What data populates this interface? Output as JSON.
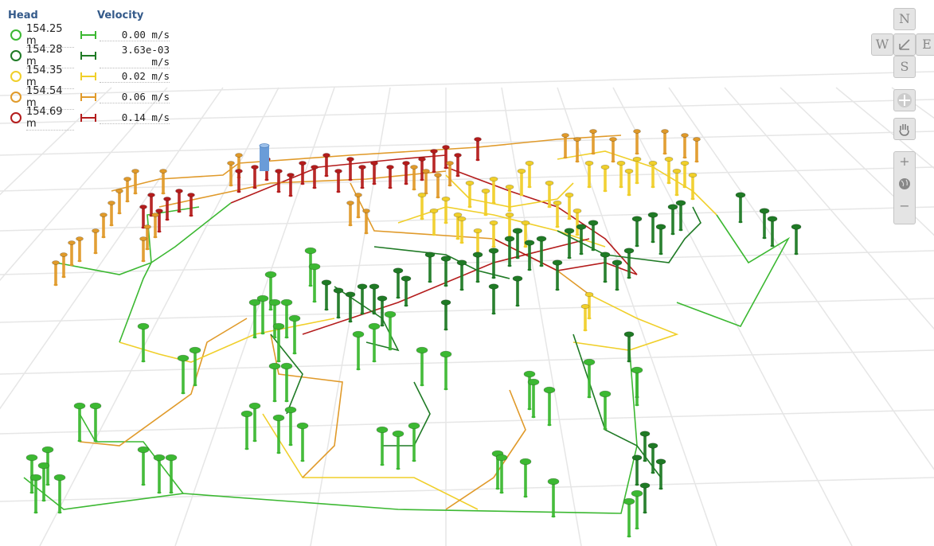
{
  "legend": {
    "head_title": "Head",
    "velocity_title": "Velocity",
    "rows": [
      {
        "head": "154.25 m",
        "velocity": "0.00 m/s",
        "color": "#3cb832"
      },
      {
        "head": "154.28 m",
        "velocity": "3.63e-03 m/s",
        "color": "#1f7a25"
      },
      {
        "head": "154.35 m",
        "velocity": "0.02 m/s",
        "color": "#f0cf2a"
      },
      {
        "head": "154.54 m",
        "velocity": "0.06 m/s",
        "color": "#e09a2a"
      },
      {
        "head": "154.69 m",
        "velocity": "0.14 m/s",
        "color": "#b41c1c"
      }
    ]
  },
  "navigation": {
    "north": "N",
    "south": "S",
    "east": "E",
    "west": "W",
    "zoom_in": "+",
    "zoom_out": "−"
  },
  "network": {
    "highlight_color": "#6a9cd8",
    "grid_color": "#e6e6e6"
  }
}
